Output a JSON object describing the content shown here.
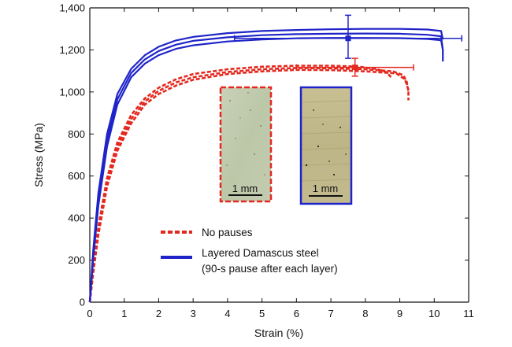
{
  "chart_data": {
    "type": "line",
    "xlabel": "Strain (%)",
    "ylabel": "Stress (MPa)",
    "xlim": [
      0,
      11
    ],
    "ylim": [
      0,
      1400
    ],
    "x_ticks": [
      0,
      1,
      2,
      3,
      4,
      5,
      6,
      7,
      8,
      9,
      10,
      11
    ],
    "x_tick_labels": [
      "0",
      "1",
      "2",
      "3",
      "4",
      "5",
      "6",
      "7",
      "8",
      "9",
      "10",
      "11"
    ],
    "y_ticks": [
      0,
      200,
      400,
      600,
      800,
      1000,
      1200,
      1400
    ],
    "y_tick_labels": [
      "0",
      "200",
      "400",
      "600",
      "800",
      "1,000",
      "1,200",
      "1,400"
    ],
    "grid": false,
    "legend_position": "bottom-center",
    "series": [
      {
        "name": "No pauses",
        "color": "#e4281e",
        "style": "dashed",
        "curves": [
          [
            [
              0,
              0
            ],
            [
              0.1,
              160
            ],
            [
              0.25,
              360
            ],
            [
              0.5,
              590
            ],
            [
              0.8,
              760
            ],
            [
              1.2,
              890
            ],
            [
              1.6,
              970
            ],
            [
              2.0,
              1020
            ],
            [
              2.5,
              1060
            ],
            [
              3.0,
              1085
            ],
            [
              4.0,
              1108
            ],
            [
              5.0,
              1120
            ],
            [
              6.0,
              1125
            ],
            [
              7.0,
              1125
            ],
            [
              7.8,
              1120
            ],
            [
              8.3,
              1110
            ],
            [
              8.6,
              1095
            ],
            [
              8.75,
              1070
            ]
          ],
          [
            [
              0,
              0
            ],
            [
              0.1,
              150
            ],
            [
              0.25,
              340
            ],
            [
              0.5,
              570
            ],
            [
              0.8,
              740
            ],
            [
              1.2,
              870
            ],
            [
              1.6,
              955
            ],
            [
              2.0,
              1005
            ],
            [
              2.5,
              1045
            ],
            [
              3.0,
              1070
            ],
            [
              4.0,
              1095
            ],
            [
              5.0,
              1108
            ],
            [
              6.0,
              1114
            ],
            [
              7.0,
              1113
            ],
            [
              8.0,
              1108
            ],
            [
              8.8,
              1098
            ],
            [
              9.1,
              1080
            ],
            [
              9.2,
              1050
            ],
            [
              9.25,
              1000
            ]
          ],
          [
            [
              0,
              0
            ],
            [
              0.1,
              140
            ],
            [
              0.25,
              320
            ],
            [
              0.5,
              550
            ],
            [
              0.8,
              720
            ],
            [
              1.2,
              850
            ],
            [
              1.6,
              940
            ],
            [
              2.0,
              990
            ],
            [
              2.5,
              1030
            ],
            [
              3.0,
              1058
            ],
            [
              4.0,
              1085
            ],
            [
              5.0,
              1098
            ],
            [
              6.0,
              1105
            ],
            [
              7.0,
              1104
            ],
            [
              8.0,
              1098
            ],
            [
              8.9,
              1088
            ],
            [
              9.15,
              1060
            ],
            [
              9.25,
              1010
            ],
            [
              9.25,
              960
            ]
          ]
        ],
        "error_bar": {
          "x": 7.7,
          "y": 1117,
          "x_err": [
            6.0,
            9.4
          ],
          "y_err": [
            1075,
            1160
          ]
        }
      },
      {
        "name": "Layered Damascus steel (90-s pause after each layer)",
        "color": "#1f24c8",
        "style": "solid",
        "curves": [
          [
            [
              0,
              0
            ],
            [
              0.1,
              250
            ],
            [
              0.25,
              520
            ],
            [
              0.5,
              800
            ],
            [
              0.8,
              990
            ],
            [
              1.2,
              1110
            ],
            [
              1.6,
              1175
            ],
            [
              2.0,
              1215
            ],
            [
              2.5,
              1245
            ],
            [
              3.0,
              1262
            ],
            [
              4.0,
              1280
            ],
            [
              5.0,
              1290
            ],
            [
              6.0,
              1295
            ],
            [
              7.0,
              1298
            ],
            [
              8.0,
              1300
            ],
            [
              9.0,
              1300
            ],
            [
              9.8,
              1297
            ],
            [
              10.2,
              1290
            ],
            [
              10.25,
              1250
            ]
          ],
          [
            [
              0,
              0
            ],
            [
              0.1,
              230
            ],
            [
              0.25,
              490
            ],
            [
              0.5,
              770
            ],
            [
              0.8,
              965
            ],
            [
              1.2,
              1090
            ],
            [
              1.6,
              1155
            ],
            [
              2.0,
              1195
            ],
            [
              2.5,
              1225
            ],
            [
              3.0,
              1243
            ],
            [
              4.0,
              1260
            ],
            [
              5.0,
              1270
            ],
            [
              6.0,
              1275
            ],
            [
              7.0,
              1277
            ],
            [
              8.0,
              1278
            ],
            [
              9.0,
              1277
            ],
            [
              9.8,
              1272
            ],
            [
              10.2,
              1265
            ],
            [
              10.25,
              1200
            ],
            [
              10.25,
              1145
            ]
          ],
          [
            [
              0,
              0
            ],
            [
              0.1,
              210
            ],
            [
              0.25,
              460
            ],
            [
              0.5,
              740
            ],
            [
              0.8,
              940
            ],
            [
              1.2,
              1070
            ],
            [
              1.6,
              1135
            ],
            [
              2.0,
              1175
            ],
            [
              2.5,
              1205
            ],
            [
              3.0,
              1222
            ],
            [
              4.0,
              1240
            ],
            [
              5.0,
              1250
            ],
            [
              6.0,
              1255
            ],
            [
              7.0,
              1257
            ],
            [
              8.0,
              1257
            ],
            [
              9.0,
              1256
            ],
            [
              9.8,
              1252
            ],
            [
              10.2,
              1246
            ],
            [
              10.25,
              1200
            ]
          ]
        ],
        "error_bar": {
          "x": 7.5,
          "y": 1255,
          "x_err": [
            4.2,
            10.8
          ],
          "y_err": [
            1160,
            1365
          ]
        }
      }
    ]
  },
  "legend": {
    "dashed_label": "No pauses",
    "solid_label_line1": "Layered Damascus steel",
    "solid_label_line2": "(90-s pause after each layer)"
  },
  "insets": {
    "left_scale": "1 mm",
    "right_scale": "1 mm",
    "left_border_color": "#e4281e",
    "right_border_color": "#1f24c8"
  }
}
